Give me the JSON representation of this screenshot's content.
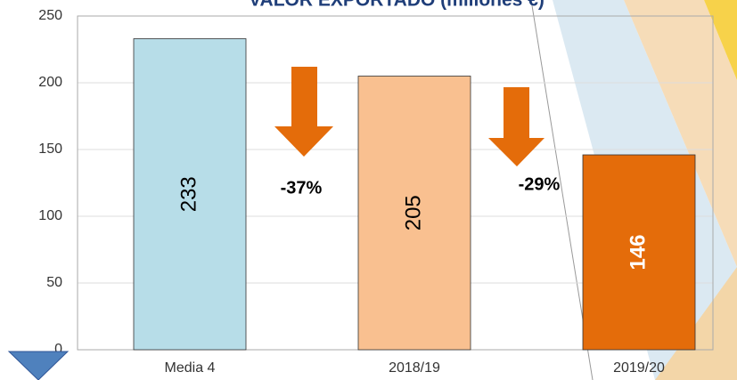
{
  "chart_data": {
    "type": "bar",
    "title": "VALOR EXPORTADO  (millones €)",
    "categories": [
      "Media 4",
      "2018/19",
      "2019/20"
    ],
    "values": [
      233,
      205,
      146
    ],
    "colors": [
      "#b7dde8",
      "#f9c090",
      "#e46c0a"
    ],
    "ylim": [
      0,
      250
    ],
    "yticks": [
      0,
      50,
      100,
      150,
      200,
      250
    ],
    "grid": true,
    "annotations": [
      "-37%",
      "-29%"
    ]
  }
}
